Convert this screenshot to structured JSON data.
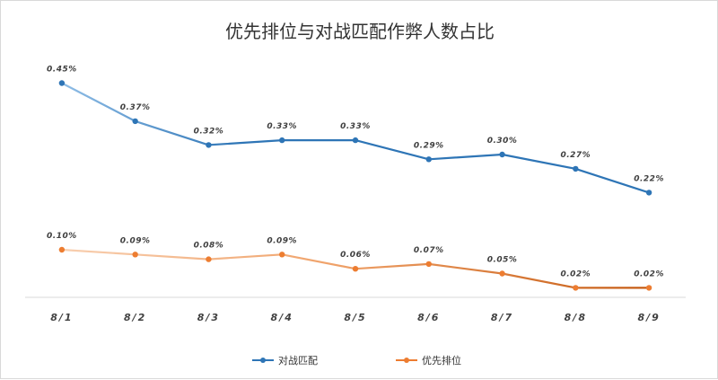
{
  "chart_data": {
    "type": "line",
    "title": "优先排位与对战匹配作弊人数占比",
    "categories": [
      "8/1",
      "8/2",
      "8/3",
      "8/4",
      "8/5",
      "8/6",
      "8/7",
      "8/8",
      "8/9"
    ],
    "series": [
      {
        "name": "对战匹配",
        "color": "#2e75b6",
        "values": [
          0.45,
          0.37,
          0.32,
          0.33,
          0.33,
          0.29,
          0.3,
          0.27,
          0.22
        ],
        "labels": [
          "0.45%",
          "0.37%",
          "0.32%",
          "0.33%",
          "0.33%",
          "0.29%",
          "0.30%",
          "0.27%",
          "0.22%"
        ]
      },
      {
        "name": "优先排位",
        "color": "#ed7d31",
        "values": [
          0.1,
          0.09,
          0.08,
          0.09,
          0.06,
          0.07,
          0.05,
          0.02,
          0.02
        ],
        "labels": [
          "0.10%",
          "0.09%",
          "0.08%",
          "0.09%",
          "0.06%",
          "0.07%",
          "0.05%",
          "0.02%",
          "0.02%"
        ]
      }
    ],
    "xlabel": "",
    "ylabel": "",
    "ylim": [
      0,
      0.5
    ],
    "grid": false,
    "legend_position": "bottom-center"
  }
}
